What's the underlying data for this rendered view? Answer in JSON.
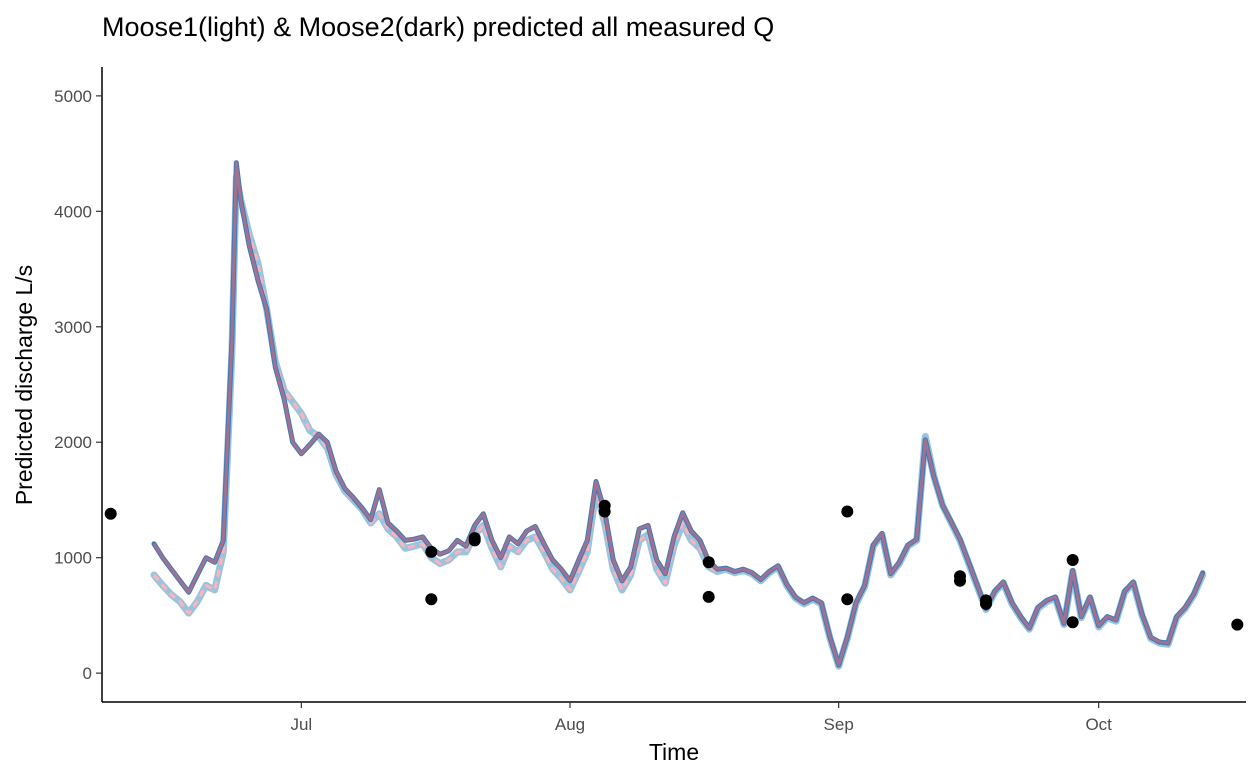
{
  "chart_data": {
    "type": "line",
    "title": "Moose1(light) & Moose2(dark) predicted all measured Q",
    "xlabel": "Time",
    "ylabel": "Predicted discharge L/s",
    "x_unit": "date",
    "xlim": [
      "2019-06-08",
      "2019-10-18"
    ],
    "ylim": [
      -250,
      5250
    ],
    "x_ticks": [
      {
        "date": "2019-07-01",
        "label": "Jul"
      },
      {
        "date": "2019-08-01",
        "label": "Aug"
      },
      {
        "date": "2019-09-01",
        "label": "Sep"
      },
      {
        "date": "2019-10-01",
        "label": "Oct"
      }
    ],
    "y_ticks": [
      0,
      1000,
      2000,
      3000,
      4000,
      5000
    ],
    "grid": false,
    "colors": {
      "moose1_band": "#9ac3dd",
      "moose1_fit": "#ffb3b8",
      "moose2_band": "#3f7ab3",
      "moose2_fit": "#c07088",
      "points": "#000000"
    },
    "series": [
      {
        "key": "moose1",
        "points": [
          [
            "2019-06-14",
            850
          ],
          [
            "2019-06-15",
            760
          ],
          [
            "2019-06-16",
            680
          ],
          [
            "2019-06-17",
            620
          ],
          [
            "2019-06-18",
            520
          ],
          [
            "2019-06-19",
            620
          ],
          [
            "2019-06-20",
            760
          ],
          [
            "2019-06-21",
            720
          ],
          [
            "2019-06-22",
            1050
          ],
          [
            "2019-06-23",
            2800
          ],
          [
            "2019-06-23T12:00",
            4300
          ],
          [
            "2019-06-24",
            4100
          ],
          [
            "2019-06-25",
            3800
          ],
          [
            "2019-06-26",
            3550
          ],
          [
            "2019-06-27",
            3150
          ],
          [
            "2019-06-28",
            2700
          ],
          [
            "2019-06-29",
            2450
          ],
          [
            "2019-06-30",
            2350
          ],
          [
            "2019-07-01",
            2250
          ],
          [
            "2019-07-02",
            2100
          ],
          [
            "2019-07-03",
            2050
          ],
          [
            "2019-07-04",
            1950
          ],
          [
            "2019-07-05",
            1720
          ],
          [
            "2019-07-06",
            1580
          ],
          [
            "2019-07-07",
            1500
          ],
          [
            "2019-07-08",
            1420
          ],
          [
            "2019-07-09",
            1300
          ],
          [
            "2019-07-10",
            1380
          ],
          [
            "2019-07-11",
            1250
          ],
          [
            "2019-07-12",
            1180
          ],
          [
            "2019-07-13",
            1080
          ],
          [
            "2019-07-14",
            1100
          ],
          [
            "2019-07-15",
            1120
          ],
          [
            "2019-07-16",
            1000
          ],
          [
            "2019-07-17",
            950
          ],
          [
            "2019-07-18",
            980
          ],
          [
            "2019-07-19",
            1050
          ],
          [
            "2019-07-20",
            1050
          ],
          [
            "2019-07-21",
            1200
          ],
          [
            "2019-07-22",
            1280
          ],
          [
            "2019-07-23",
            1080
          ],
          [
            "2019-07-24",
            920
          ],
          [
            "2019-07-25",
            1100
          ],
          [
            "2019-07-26",
            1050
          ],
          [
            "2019-07-27",
            1150
          ],
          [
            "2019-07-28",
            1180
          ],
          [
            "2019-07-29",
            1050
          ],
          [
            "2019-07-30",
            900
          ],
          [
            "2019-07-31",
            820
          ],
          [
            "2019-08-01",
            720
          ],
          [
            "2019-08-02",
            880
          ],
          [
            "2019-08-03",
            1050
          ],
          [
            "2019-08-04",
            1580
          ],
          [
            "2019-08-05",
            1300
          ],
          [
            "2019-08-06",
            900
          ],
          [
            "2019-08-07",
            720
          ],
          [
            "2019-08-08",
            850
          ],
          [
            "2019-08-09",
            1150
          ],
          [
            "2019-08-10",
            1200
          ],
          [
            "2019-08-11",
            900
          ],
          [
            "2019-08-12",
            780
          ],
          [
            "2019-08-13",
            1100
          ],
          [
            "2019-08-14",
            1300
          ],
          [
            "2019-08-15",
            1150
          ],
          [
            "2019-08-16",
            1080
          ],
          [
            "2019-08-17",
            920
          ],
          [
            "2019-08-18",
            880
          ],
          [
            "2019-08-19",
            900
          ],
          [
            "2019-08-20",
            870
          ],
          [
            "2019-08-21",
            890
          ],
          [
            "2019-08-22",
            860
          ],
          [
            "2019-08-23",
            800
          ],
          [
            "2019-08-24",
            870
          ],
          [
            "2019-08-25",
            920
          ],
          [
            "2019-08-26",
            760
          ],
          [
            "2019-08-27",
            650
          ],
          [
            "2019-08-28",
            600
          ],
          [
            "2019-08-29",
            640
          ],
          [
            "2019-08-30",
            600
          ],
          [
            "2019-08-31",
            300
          ],
          [
            "2019-09-01",
            60
          ],
          [
            "2019-09-02",
            300
          ],
          [
            "2019-09-03",
            600
          ],
          [
            "2019-09-04",
            750
          ],
          [
            "2019-09-05",
            1100
          ],
          [
            "2019-09-06",
            1200
          ],
          [
            "2019-09-07",
            850
          ],
          [
            "2019-09-08",
            950
          ],
          [
            "2019-09-09",
            1100
          ],
          [
            "2019-09-10",
            1150
          ],
          [
            "2019-09-11",
            2050
          ],
          [
            "2019-09-12",
            1700
          ],
          [
            "2019-09-13",
            1450
          ],
          [
            "2019-09-14",
            1300
          ],
          [
            "2019-09-15",
            1150
          ],
          [
            "2019-09-16",
            950
          ],
          [
            "2019-09-17",
            750
          ],
          [
            "2019-09-18",
            550
          ],
          [
            "2019-09-19",
            700
          ],
          [
            "2019-09-20",
            780
          ],
          [
            "2019-09-21",
            600
          ],
          [
            "2019-09-22",
            480
          ],
          [
            "2019-09-23",
            380
          ],
          [
            "2019-09-24",
            560
          ],
          [
            "2019-09-25",
            620
          ],
          [
            "2019-09-26",
            650
          ],
          [
            "2019-09-27",
            420
          ],
          [
            "2019-09-28",
            880
          ],
          [
            "2019-09-29",
            480
          ],
          [
            "2019-09-30",
            650
          ],
          [
            "2019-10-01",
            400
          ],
          [
            "2019-10-02",
            480
          ],
          [
            "2019-10-03",
            450
          ],
          [
            "2019-10-04",
            700
          ],
          [
            "2019-10-05",
            780
          ],
          [
            "2019-10-06",
            500
          ],
          [
            "2019-10-07",
            300
          ],
          [
            "2019-10-08",
            260
          ],
          [
            "2019-10-09",
            250
          ],
          [
            "2019-10-10",
            480
          ],
          [
            "2019-10-11",
            560
          ],
          [
            "2019-10-12",
            680
          ],
          [
            "2019-10-13",
            850
          ]
        ]
      },
      {
        "key": "moose2",
        "points": [
          [
            "2019-06-14",
            1120
          ],
          [
            "2019-06-15",
            1000
          ],
          [
            "2019-06-16",
            900
          ],
          [
            "2019-06-17",
            800
          ],
          [
            "2019-06-18",
            700
          ],
          [
            "2019-06-19",
            850
          ],
          [
            "2019-06-20",
            1000
          ],
          [
            "2019-06-21",
            960
          ],
          [
            "2019-06-22",
            1150
          ],
          [
            "2019-06-23",
            2900
          ],
          [
            "2019-06-23T12:00",
            4420
          ],
          [
            "2019-06-24",
            4100
          ],
          [
            "2019-06-25",
            3700
          ],
          [
            "2019-06-26",
            3400
          ],
          [
            "2019-06-27",
            3150
          ],
          [
            "2019-06-28",
            2650
          ],
          [
            "2019-06-29",
            2380
          ],
          [
            "2019-06-30",
            2000
          ],
          [
            "2019-07-01",
            1900
          ],
          [
            "2019-07-02",
            1980
          ],
          [
            "2019-07-03",
            2070
          ],
          [
            "2019-07-04",
            2000
          ],
          [
            "2019-07-05",
            1750
          ],
          [
            "2019-07-06",
            1600
          ],
          [
            "2019-07-07",
            1520
          ],
          [
            "2019-07-08",
            1430
          ],
          [
            "2019-07-09",
            1330
          ],
          [
            "2019-07-10",
            1590
          ],
          [
            "2019-07-11",
            1300
          ],
          [
            "2019-07-12",
            1230
          ],
          [
            "2019-07-13",
            1150
          ],
          [
            "2019-07-14",
            1160
          ],
          [
            "2019-07-15",
            1180
          ],
          [
            "2019-07-16",
            1080
          ],
          [
            "2019-07-17",
            1030
          ],
          [
            "2019-07-18",
            1060
          ],
          [
            "2019-07-19",
            1150
          ],
          [
            "2019-07-20",
            1100
          ],
          [
            "2019-07-21",
            1280
          ],
          [
            "2019-07-22",
            1380
          ],
          [
            "2019-07-23",
            1150
          ],
          [
            "2019-07-24",
            1000
          ],
          [
            "2019-07-25",
            1180
          ],
          [
            "2019-07-26",
            1120
          ],
          [
            "2019-07-27",
            1230
          ],
          [
            "2019-07-28",
            1270
          ],
          [
            "2019-07-29",
            1120
          ],
          [
            "2019-07-30",
            980
          ],
          [
            "2019-07-31",
            900
          ],
          [
            "2019-08-01",
            800
          ],
          [
            "2019-08-02",
            980
          ],
          [
            "2019-08-03",
            1150
          ],
          [
            "2019-08-04",
            1660
          ],
          [
            "2019-08-05",
            1400
          ],
          [
            "2019-08-06",
            980
          ],
          [
            "2019-08-07",
            800
          ],
          [
            "2019-08-08",
            920
          ],
          [
            "2019-08-09",
            1250
          ],
          [
            "2019-08-10",
            1280
          ],
          [
            "2019-08-11",
            980
          ],
          [
            "2019-08-12",
            860
          ],
          [
            "2019-08-13",
            1180
          ],
          [
            "2019-08-14",
            1390
          ],
          [
            "2019-08-15",
            1230
          ],
          [
            "2019-08-16",
            1150
          ],
          [
            "2019-08-17",
            970
          ],
          [
            "2019-08-18",
            900
          ],
          [
            "2019-08-19",
            910
          ],
          [
            "2019-08-20",
            880
          ],
          [
            "2019-08-21",
            900
          ],
          [
            "2019-08-22",
            870
          ],
          [
            "2019-08-23",
            810
          ],
          [
            "2019-08-24",
            880
          ],
          [
            "2019-08-25",
            930
          ],
          [
            "2019-08-26",
            770
          ],
          [
            "2019-08-27",
            660
          ],
          [
            "2019-08-28",
            610
          ],
          [
            "2019-08-29",
            650
          ],
          [
            "2019-08-30",
            610
          ],
          [
            "2019-08-31",
            310
          ],
          [
            "2019-09-01",
            70
          ],
          [
            "2019-09-02",
            310
          ],
          [
            "2019-09-03",
            610
          ],
          [
            "2019-09-04",
            760
          ],
          [
            "2019-09-05",
            1110
          ],
          [
            "2019-09-06",
            1210
          ],
          [
            "2019-09-07",
            860
          ],
          [
            "2019-09-08",
            960
          ],
          [
            "2019-09-09",
            1110
          ],
          [
            "2019-09-10",
            1160
          ],
          [
            "2019-09-11",
            2020
          ],
          [
            "2019-09-12",
            1700
          ],
          [
            "2019-09-13",
            1450
          ],
          [
            "2019-09-14",
            1310
          ],
          [
            "2019-09-15",
            1160
          ],
          [
            "2019-09-16",
            960
          ],
          [
            "2019-09-17",
            760
          ],
          [
            "2019-09-18",
            560
          ],
          [
            "2019-09-19",
            710
          ],
          [
            "2019-09-20",
            790
          ],
          [
            "2019-09-21",
            610
          ],
          [
            "2019-09-22",
            490
          ],
          [
            "2019-09-23",
            390
          ],
          [
            "2019-09-24",
            570
          ],
          [
            "2019-09-25",
            630
          ],
          [
            "2019-09-26",
            660
          ],
          [
            "2019-09-27",
            430
          ],
          [
            "2019-09-28",
            890
          ],
          [
            "2019-09-29",
            490
          ],
          [
            "2019-09-30",
            660
          ],
          [
            "2019-10-01",
            410
          ],
          [
            "2019-10-02",
            490
          ],
          [
            "2019-10-03",
            460
          ],
          [
            "2019-10-04",
            710
          ],
          [
            "2019-10-05",
            790
          ],
          [
            "2019-10-06",
            510
          ],
          [
            "2019-10-07",
            310
          ],
          [
            "2019-10-08",
            270
          ],
          [
            "2019-10-09",
            260
          ],
          [
            "2019-10-10",
            490
          ],
          [
            "2019-10-11",
            570
          ],
          [
            "2019-10-12",
            690
          ],
          [
            "2019-10-13",
            870
          ]
        ]
      }
    ],
    "measured_points": [
      [
        "2019-06-09",
        1380
      ],
      [
        "2019-07-16",
        1050
      ],
      [
        "2019-07-16",
        640
      ],
      [
        "2019-07-21",
        1170
      ],
      [
        "2019-07-21",
        1150
      ],
      [
        "2019-08-05",
        1450
      ],
      [
        "2019-08-05",
        1400
      ],
      [
        "2019-08-17",
        960
      ],
      [
        "2019-08-17",
        660
      ],
      [
        "2019-09-02",
        1400
      ],
      [
        "2019-09-02",
        640
      ],
      [
        "2019-09-15",
        840
      ],
      [
        "2019-09-15",
        800
      ],
      [
        "2019-09-18",
        630
      ],
      [
        "2019-09-18",
        600
      ],
      [
        "2019-09-28",
        980
      ],
      [
        "2019-09-28",
        440
      ],
      [
        "2019-10-17",
        420
      ]
    ]
  }
}
